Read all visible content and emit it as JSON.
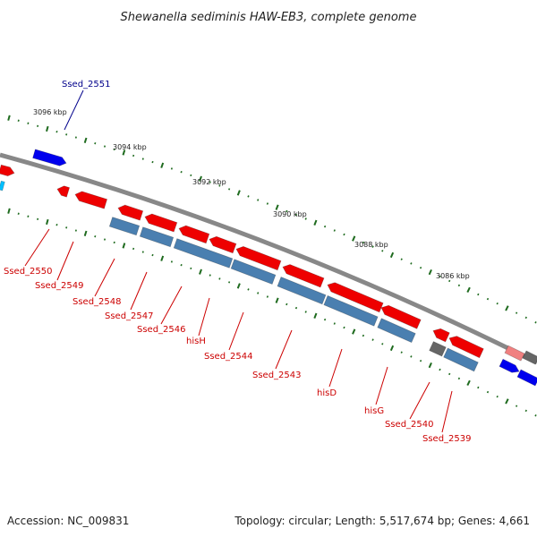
{
  "title": "Shewanella sediminis HAW-EB3, complete genome",
  "footer": {
    "accession": "Accession: NC_009831",
    "summary": "Topology: circular; Length: 5,517,674 bp; Genes: 4,661"
  },
  "colors": {
    "cds_forward": "#0000ee",
    "cds_reverse": "#ee0000",
    "gene_reverse": "#4a7fb0",
    "gene_pseudo": "#666666",
    "tick": "#1f6b1f",
    "backbone": "#888888",
    "label_forward": "#00008b",
    "label_reverse": "#cc0000"
  },
  "scale_labels": [
    "3096 kbp",
    "3094 kbp",
    "3092 kbp",
    "3090 kbp",
    "3088 kbp",
    "3086 kbp"
  ],
  "forward_labels": [
    "Ssed_2551"
  ],
  "reverse_labels": [
    "Ssed_2550",
    "Ssed_2549",
    "Ssed_2548",
    "Ssed_2547",
    "Ssed_2546",
    "hisH",
    "Ssed_2544",
    "Ssed_2543",
    "hisD",
    "hisG",
    "Ssed_2540",
    "Ssed_2539"
  ]
}
